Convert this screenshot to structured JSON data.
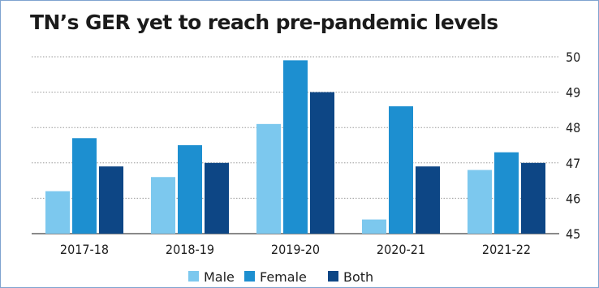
{
  "chart_data": {
    "type": "bar",
    "title": "TN’s GER yet to reach pre-pandemic levels",
    "categories": [
      "2017-18",
      "2018-19",
      "2019-20",
      "2020-21",
      "2021-22"
    ],
    "series": [
      {
        "name": "Male",
        "color": "#7cc8ee",
        "values": [
          46.2,
          46.6,
          48.1,
          45.4,
          46.8
        ]
      },
      {
        "name": "Female",
        "color": "#1d8fd0",
        "values": [
          47.7,
          47.5,
          49.9,
          48.6,
          47.3
        ]
      },
      {
        "name": "Both",
        "color": "#0d4685",
        "values": [
          46.9,
          47.0,
          49.0,
          46.9,
          47.0
        ]
      }
    ],
    "ylim": [
      45,
      50
    ],
    "yticks": [
      45,
      46,
      47,
      48,
      49,
      50
    ],
    "y_axis_side": "right",
    "grid": true,
    "legend_position": "bottom"
  }
}
